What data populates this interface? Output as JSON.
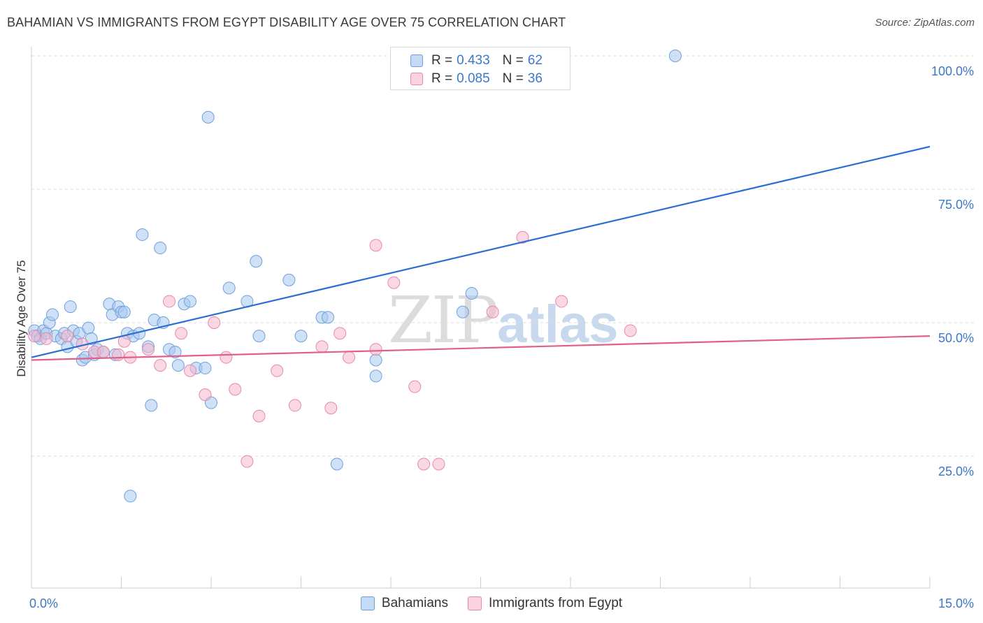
{
  "title": "BAHAMIAN VS IMMIGRANTS FROM EGYPT DISABILITY AGE OVER 75 CORRELATION CHART",
  "source": "Source: ZipAtlas.com",
  "watermark": {
    "zip": "ZIP",
    "atlas": "atlas"
  },
  "legend_top": {
    "rows": [
      {
        "r_label": "R =",
        "r_value": "0.433",
        "n_label": "N =",
        "n_value": "62",
        "color": "#a8c8f0"
      },
      {
        "r_label": "R =",
        "r_value": "0.085",
        "n_label": "N =",
        "n_value": "36",
        "color": "#f5b8cc"
      }
    ]
  },
  "chart_data": {
    "type": "scatter",
    "title": "BAHAMIAN VS IMMIGRANTS FROM EGYPT DISABILITY AGE OVER 75 CORRELATION CHART",
    "xlabel": "",
    "ylabel": "Disability Age Over 75",
    "xlim": [
      0,
      15
    ],
    "ylim": [
      0,
      105
    ],
    "x_tick_labels": [
      "0.0%",
      "15.0%"
    ],
    "y_ticks": [
      25,
      50,
      75,
      100
    ],
    "y_tick_labels": [
      "25.0%",
      "50.0%",
      "75.0%",
      "100.0%"
    ],
    "grid": true,
    "legend_position": "bottom",
    "series": [
      {
        "name": "Bahamians",
        "color": "#a8c8f0",
        "edge": "#6fa0dc",
        "trend_color": "#2a6fd0",
        "trend": [
          [
            0,
            43.5
          ],
          [
            15,
            83
          ]
        ],
        "points": [
          [
            0.05,
            48.5
          ],
          [
            0.1,
            47.5
          ],
          [
            0.15,
            47.0
          ],
          [
            0.2,
            48.5
          ],
          [
            0.25,
            48.0
          ],
          [
            0.3,
            50.0
          ],
          [
            0.35,
            51.5
          ],
          [
            0.4,
            47.5
          ],
          [
            0.5,
            47.0
          ],
          [
            0.55,
            48.0
          ],
          [
            0.6,
            45.5
          ],
          [
            0.65,
            53.0
          ],
          [
            0.7,
            48.5
          ],
          [
            0.75,
            46.5
          ],
          [
            0.8,
            48.0
          ],
          [
            0.85,
            43.0
          ],
          [
            0.9,
            43.5
          ],
          [
            0.95,
            49.0
          ],
          [
            1.0,
            47.0
          ],
          [
            1.05,
            44.0
          ],
          [
            1.1,
            45.0
          ],
          [
            1.2,
            44.5
          ],
          [
            1.3,
            53.5
          ],
          [
            1.35,
            51.5
          ],
          [
            1.4,
            44.0
          ],
          [
            1.45,
            53.0
          ],
          [
            1.5,
            52.0
          ],
          [
            1.55,
            52.0
          ],
          [
            1.6,
            48.0
          ],
          [
            1.65,
            17.5
          ],
          [
            1.7,
            47.5
          ],
          [
            1.8,
            48.0
          ],
          [
            1.85,
            66.5
          ],
          [
            1.95,
            45.5
          ],
          [
            2.0,
            34.5
          ],
          [
            2.05,
            50.5
          ],
          [
            2.15,
            64.0
          ],
          [
            2.2,
            50.0
          ],
          [
            2.3,
            45.0
          ],
          [
            2.4,
            44.5
          ],
          [
            2.45,
            42.0
          ],
          [
            2.55,
            53.5
          ],
          [
            2.65,
            54.0
          ],
          [
            2.75,
            41.5
          ],
          [
            2.9,
            41.5
          ],
          [
            2.95,
            88.5
          ],
          [
            3.0,
            35.0
          ],
          [
            3.3,
            56.5
          ],
          [
            3.6,
            54.0
          ],
          [
            3.75,
            61.5
          ],
          [
            3.8,
            47.5
          ],
          [
            4.3,
            58.0
          ],
          [
            4.5,
            47.5
          ],
          [
            4.85,
            51.0
          ],
          [
            4.95,
            51.0
          ],
          [
            5.1,
            23.5
          ],
          [
            5.75,
            43.0
          ],
          [
            5.75,
            40.0
          ],
          [
            7.2,
            52.0
          ],
          [
            7.35,
            55.5
          ],
          [
            7.5,
            100.0
          ],
          [
            10.75,
            100.0
          ]
        ]
      },
      {
        "name": "Immigrants from Egypt",
        "color": "#f5b8cc",
        "edge": "#e888a8",
        "trend_color": "#e0608a",
        "trend": [
          [
            0,
            43.0
          ],
          [
            15,
            47.5
          ]
        ],
        "points": [
          [
            0.05,
            47.5
          ],
          [
            0.25,
            47.0
          ],
          [
            0.6,
            47.5
          ],
          [
            0.85,
            46.0
          ],
          [
            1.05,
            44.5
          ],
          [
            1.2,
            44.5
          ],
          [
            1.45,
            44.0
          ],
          [
            1.55,
            46.5
          ],
          [
            1.65,
            43.5
          ],
          [
            1.95,
            45.0
          ],
          [
            2.15,
            42.0
          ],
          [
            2.3,
            54.0
          ],
          [
            2.5,
            48.0
          ],
          [
            2.65,
            41.0
          ],
          [
            2.9,
            36.5
          ],
          [
            3.05,
            50.0
          ],
          [
            3.25,
            43.5
          ],
          [
            3.4,
            37.5
          ],
          [
            3.6,
            24.0
          ],
          [
            3.8,
            32.5
          ],
          [
            4.1,
            41.0
          ],
          [
            4.4,
            34.5
          ],
          [
            4.85,
            45.5
          ],
          [
            5.0,
            34.0
          ],
          [
            5.15,
            48.0
          ],
          [
            5.3,
            43.5
          ],
          [
            5.75,
            64.5
          ],
          [
            5.75,
            45.0
          ],
          [
            6.05,
            57.5
          ],
          [
            6.4,
            38.0
          ],
          [
            6.55,
            23.5
          ],
          [
            6.8,
            23.5
          ],
          [
            7.7,
            52.0
          ],
          [
            8.2,
            66.0
          ],
          [
            8.85,
            54.0
          ],
          [
            10.0,
            48.5
          ]
        ]
      }
    ]
  }
}
